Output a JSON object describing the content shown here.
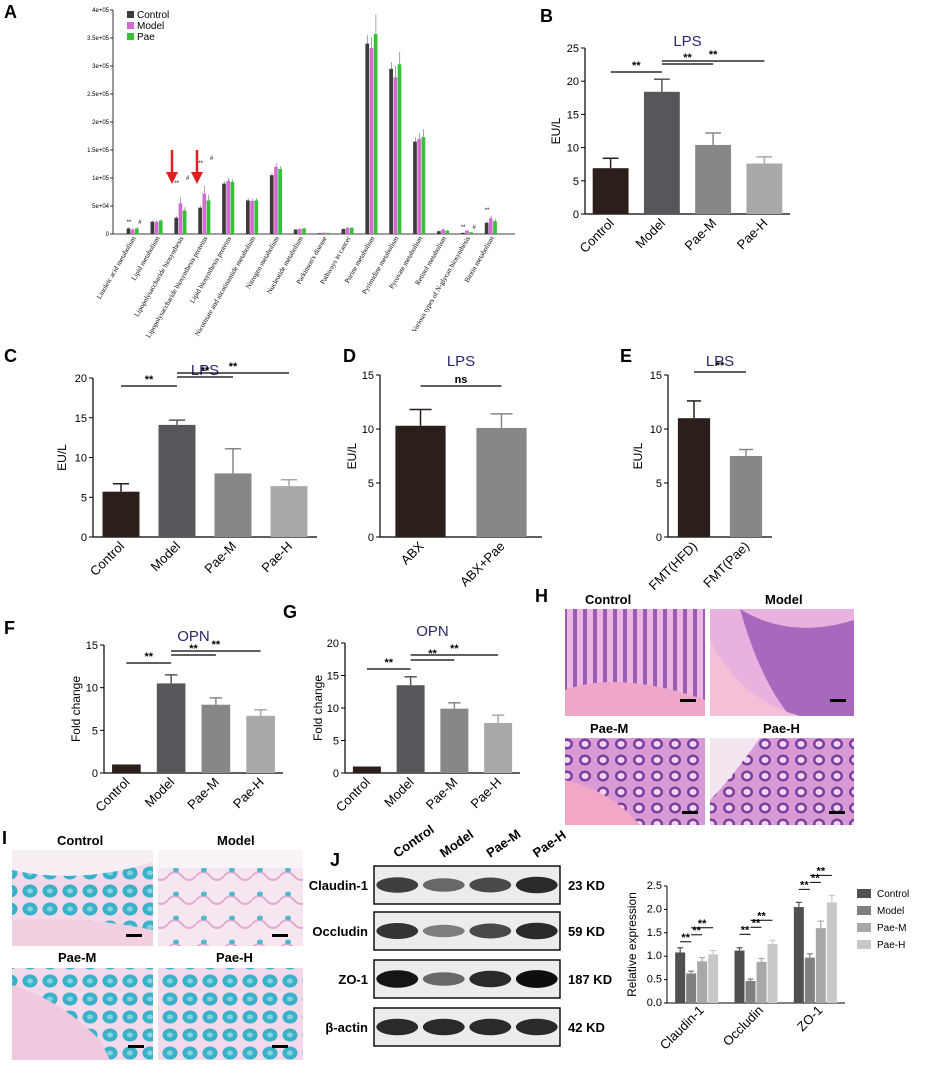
{
  "panel_labels": {
    "A": "A",
    "B": "B",
    "C": "C",
    "D": "D",
    "E": "E",
    "F": "F",
    "G": "G",
    "H": "H",
    "I": "I",
    "J": "J"
  },
  "colors": {
    "control": "#2a1f1b",
    "model": "#57575b",
    "paeM": "#878787",
    "paeH": "#a9a9a9",
    "A_control": "#3b3b3b",
    "A_model": "#d36bd3",
    "A_pae": "#33c233",
    "J_control": "#505050",
    "J_model": "#808080",
    "J_paeM": "#a8a8a8",
    "J_paeH": "#c8c8c8"
  },
  "chart_data": [
    {
      "id": "A",
      "type": "bar",
      "categories": [
        "Linoleic acid metabolism",
        "Lipid metabolism",
        "Lipopolysaccharide biosynthesis",
        "Lipopolysaccharide biosynthesis proteins",
        "Lipid biosynthesis proteins",
        "Nicotinate and nicotinamide metabolism",
        "Nitrogen metabolism",
        "Nucleotide metabolism",
        "Parkinson's disease",
        "Pathways in cancer",
        "Purine metabolism",
        "Pyrimidine metabolism",
        "Pyruvate metabolism",
        "Retinol metabolism",
        "Various types of N-glycan biosynthesis",
        "Biotin metabolism"
      ],
      "series": [
        {
          "name": "Control",
          "values": [
            10000,
            22000,
            29000,
            47000,
            90000,
            60000,
            105000,
            8000,
            1500,
            9000,
            340000,
            295000,
            165000,
            5000,
            2000,
            20000
          ],
          "errors": [
            2000,
            2000,
            3000,
            4000,
            4000,
            4000,
            4000,
            1000,
            500,
            1000,
            15000,
            12000,
            8000,
            1000,
            500,
            3000
          ]
        },
        {
          "name": "Model",
          "values": [
            8000,
            22000,
            55000,
            72000,
            95000,
            59000,
            120000,
            9000,
            2500,
            11000,
            332000,
            280000,
            170000,
            8000,
            6000,
            28000
          ],
          "errors": [
            2000,
            2000,
            10000,
            14000,
            5000,
            4000,
            6000,
            1000,
            500,
            1500,
            20000,
            20000,
            10000,
            1500,
            1500,
            4000
          ]
        },
        {
          "name": "Pae",
          "values": [
            10000,
            24000,
            42000,
            60000,
            93000,
            60000,
            116000,
            10000,
            2000,
            11000,
            357000,
            303000,
            173000,
            6000,
            3000,
            23000
          ],
          "errors": [
            2000,
            2000,
            6000,
            10000,
            4000,
            4000,
            5000,
            1000,
            500,
            1500,
            35000,
            22000,
            14000,
            1000,
            700,
            4000
          ]
        }
      ],
      "ylim": [
        0,
        400000
      ],
      "ytick_labels": [
        "0",
        "5e+04",
        "1e+05",
        "1.5e+05",
        "2e+05",
        "2.5e+05",
        "3e+05",
        "3.5e+05",
        "4e+05"
      ],
      "sig_labels": [
        "**",
        "#",
        "**",
        "#",
        "**",
        "#",
        "**",
        "#",
        "**"
      ],
      "legend": "top-left"
    },
    {
      "id": "B",
      "type": "bar",
      "title": "LPS",
      "ylabel": "EU/L",
      "categories": [
        "Control",
        "Model",
        "Pae-M",
        "Pae-H"
      ],
      "values": [
        6.9,
        18.4,
        10.4,
        7.6
      ],
      "errors": [
        1.5,
        1.9,
        1.8,
        1.0
      ],
      "ylim": [
        0,
        25
      ],
      "yticks": [
        "0",
        "5",
        "10",
        "15",
        "20",
        "25"
      ],
      "sig": [
        [
          "Control",
          "Model",
          "**"
        ],
        [
          "Model",
          "Pae-M",
          "**"
        ],
        [
          "Model",
          "Pae-H",
          "**"
        ]
      ]
    },
    {
      "id": "C",
      "type": "bar",
      "title": "LPS",
      "ylabel": "EU/L",
      "categories": [
        "Control",
        "Model",
        "Pae-M",
        "Pae-H"
      ],
      "values": [
        5.7,
        14.1,
        8.0,
        6.4
      ],
      "errors": [
        1.0,
        0.6,
        3.1,
        0.8
      ],
      "ylim": [
        0,
        20
      ],
      "yticks": [
        "0",
        "5",
        "10",
        "15",
        "20"
      ],
      "sig": [
        [
          "Control",
          "Model",
          "**"
        ],
        [
          "Model",
          "Pae-M",
          "**"
        ],
        [
          "Model",
          "Pae-H",
          "**"
        ]
      ]
    },
    {
      "id": "D",
      "type": "bar",
      "title": "LPS",
      "ylabel": "EU/L",
      "categories": [
        "ABX",
        "ABX+Pae"
      ],
      "values": [
        10.3,
        10.1
      ],
      "errors": [
        1.5,
        1.3
      ],
      "ylim": [
        0,
        15
      ],
      "yticks": [
        "0",
        "5",
        "10",
        "15"
      ],
      "sig": [
        [
          "ABX",
          "ABX+Pae",
          "ns"
        ]
      ]
    },
    {
      "id": "E",
      "type": "bar",
      "title": "LPS",
      "ylabel": "EU/L",
      "categories": [
        "FMT(HFD)",
        "FMT(Pae)"
      ],
      "values": [
        11.0,
        7.5
      ],
      "errors": [
        1.6,
        0.6
      ],
      "ylim": [
        0,
        15
      ],
      "yticks": [
        "0",
        "5",
        "10",
        "15"
      ],
      "sig": [
        [
          "FMT(HFD)",
          "FMT(Pae)",
          "**"
        ]
      ]
    },
    {
      "id": "F",
      "type": "bar",
      "title": "OPN",
      "ylabel": "Fold change",
      "categories": [
        "Control",
        "Model",
        "Pae-M",
        "Pae-H"
      ],
      "values": [
        1.0,
        10.5,
        8.0,
        6.7
      ],
      "errors": [
        0,
        1.0,
        0.8,
        0.7
      ],
      "ylim": [
        0,
        15
      ],
      "yticks": [
        "0",
        "5",
        "10",
        "15"
      ],
      "sig": [
        [
          "Control",
          "Model",
          "**"
        ],
        [
          "Model",
          "Pae-M",
          "**"
        ],
        [
          "Model",
          "Pae-H",
          "**"
        ]
      ]
    },
    {
      "id": "G",
      "type": "bar",
      "title": "OPN",
      "ylabel": "Fold change",
      "categories": [
        "Control",
        "Model",
        "Pae-M",
        "Pae-H"
      ],
      "values": [
        1.0,
        13.5,
        9.9,
        7.7
      ],
      "errors": [
        0,
        1.3,
        0.9,
        1.2
      ],
      "ylim": [
        0,
        20
      ],
      "yticks": [
        "0",
        "5",
        "10",
        "15",
        "20"
      ],
      "sig": [
        [
          "Control",
          "Model",
          "**"
        ],
        [
          "Model",
          "Pae-M",
          "**"
        ],
        [
          "Model",
          "Pae-H",
          "**"
        ]
      ]
    },
    {
      "id": "J",
      "type": "bar",
      "ylabel": "Relative expression",
      "categories": [
        "Claudin-1",
        "Occludin",
        "ZO-1"
      ],
      "series": [
        {
          "name": "Control",
          "values": [
            1.08,
            1.12,
            2.05
          ],
          "errors": [
            0.1,
            0.06,
            0.1
          ]
        },
        {
          "name": "Model",
          "values": [
            0.63,
            0.47,
            0.97
          ],
          "errors": [
            0.05,
            0.04,
            0.08
          ]
        },
        {
          "name": "Pae-M",
          "values": [
            0.89,
            0.88,
            1.6
          ],
          "errors": [
            0.08,
            0.07,
            0.15
          ]
        },
        {
          "name": "Pae-H",
          "values": [
            1.04,
            1.26,
            2.15
          ],
          "errors": [
            0.08,
            0.08,
            0.15
          ]
        }
      ],
      "ylim": [
        0,
        2.5
      ],
      "yticks": [
        "0.0",
        "0.5",
        "1.0",
        "1.5",
        "2.0",
        "2.5"
      ],
      "legend": "right"
    }
  ],
  "micro_H": {
    "control": "Control",
    "model": "Model",
    "paeM": "Pae-M",
    "paeH": "Pae-H"
  },
  "micro_I": {
    "control": "Control",
    "model": "Model",
    "paeM": "Pae-M",
    "paeH": "Pae-H"
  },
  "blot": {
    "lanes": [
      "Control",
      "Model",
      "Pae-M",
      "Pae-H"
    ],
    "rows": [
      {
        "label": "Claudin-1",
        "kd": "23 KD",
        "intensity": [
          0.75,
          0.55,
          0.7,
          0.85
        ]
      },
      {
        "label": "Occludin",
        "kd": "59 KD",
        "intensity": [
          0.8,
          0.45,
          0.7,
          0.85
        ]
      },
      {
        "label": "ZO-1",
        "kd": "187 KD",
        "intensity": [
          0.95,
          0.55,
          0.85,
          0.98
        ]
      },
      {
        "label": "β-actin",
        "kd": "42 KD",
        "intensity": [
          0.85,
          0.85,
          0.85,
          0.85
        ]
      }
    ]
  }
}
